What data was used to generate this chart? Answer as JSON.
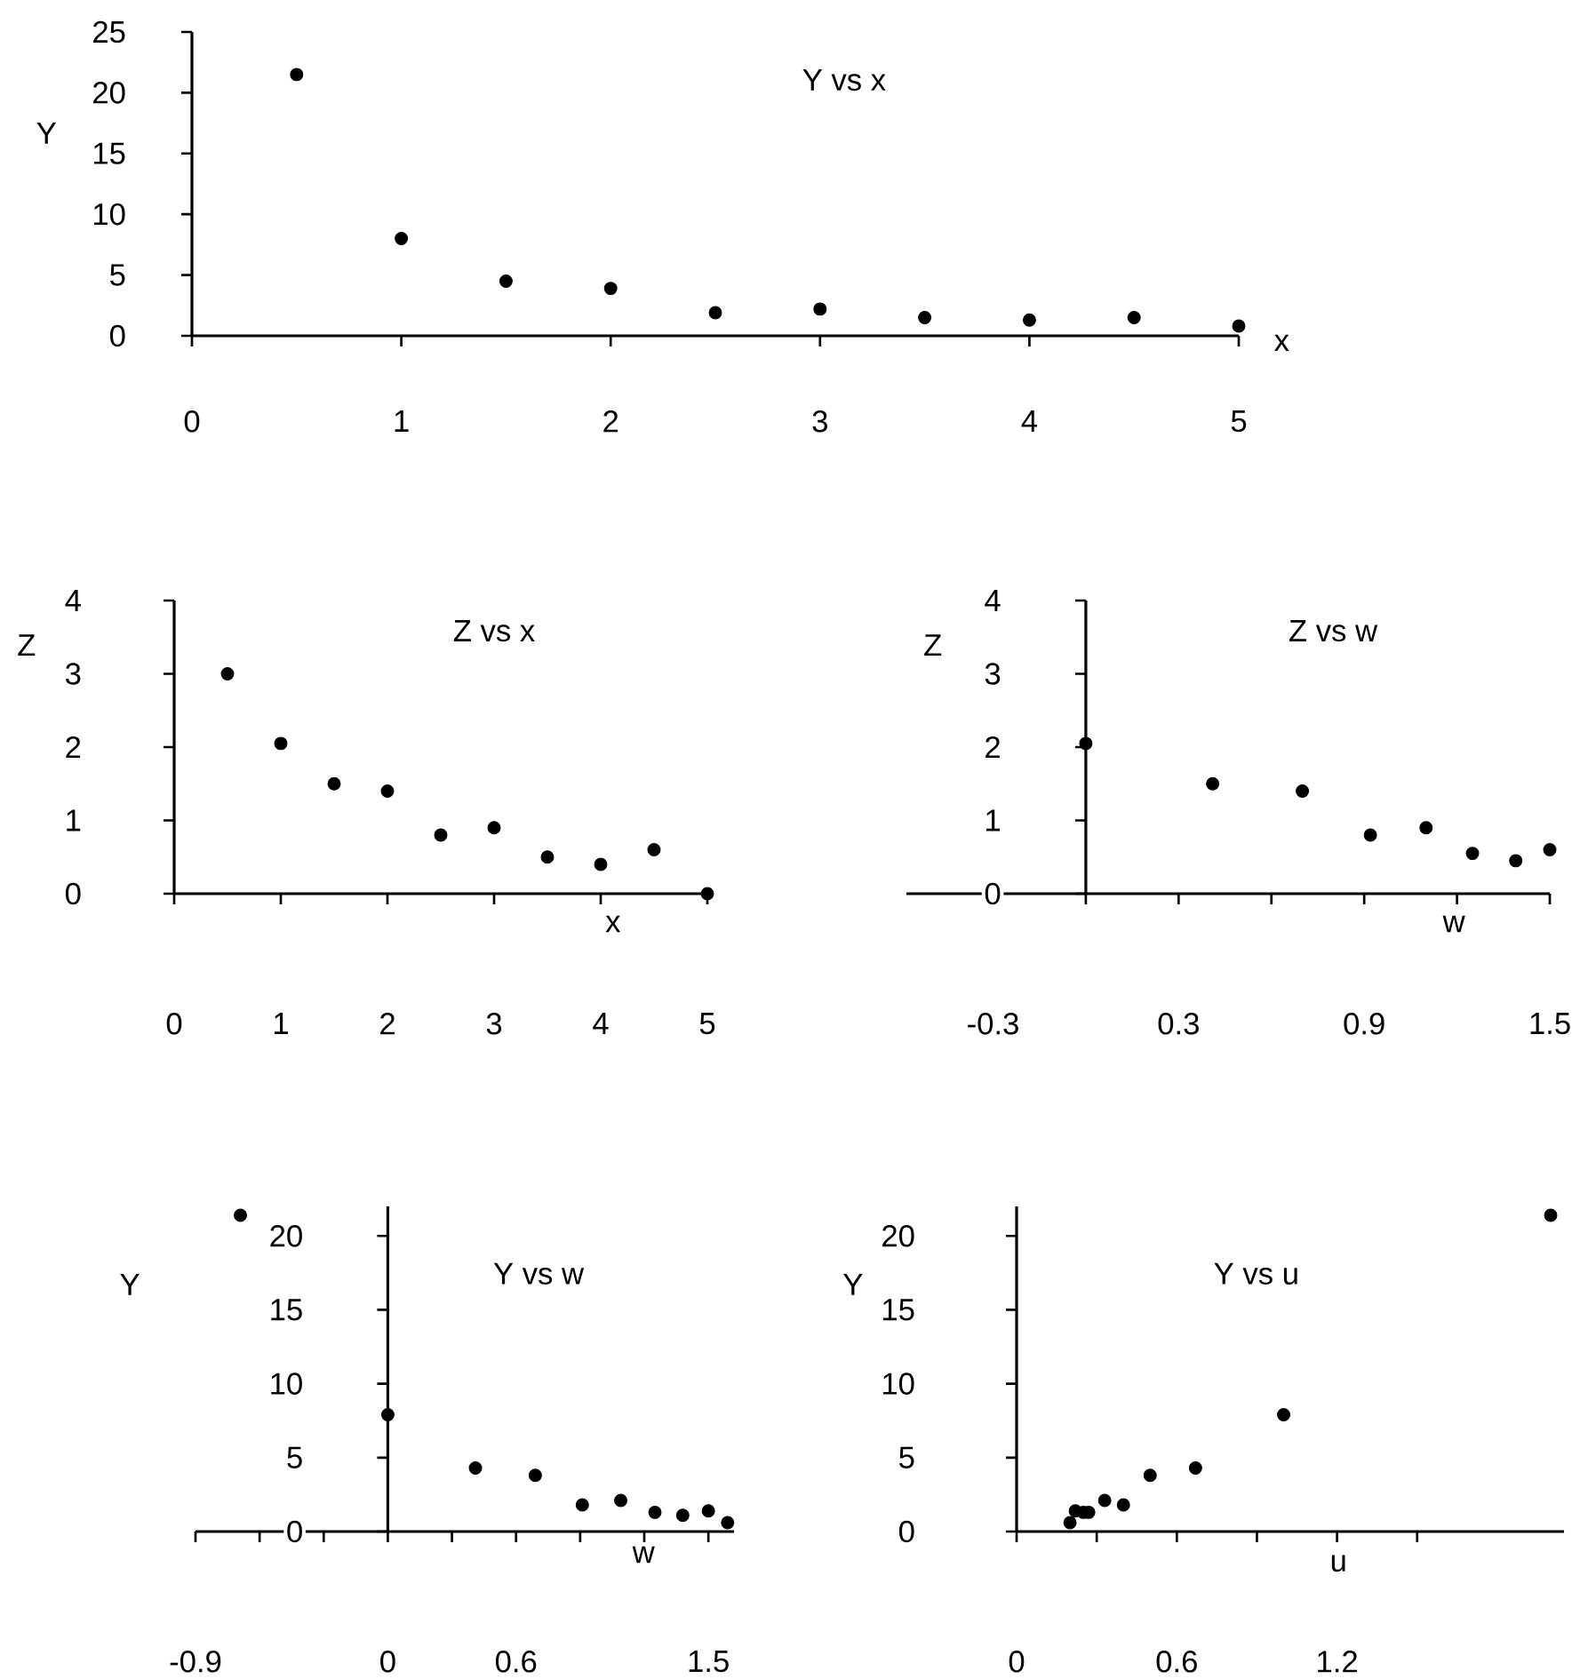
{
  "chart_data": [
    {
      "type": "scatter",
      "title": "Y vs x",
      "xlabel": "x",
      "ylabel": "Y",
      "marker": "circle",
      "color": "#000000",
      "x": [
        0.5,
        1,
        1.5,
        2,
        2.5,
        3,
        3.5,
        4,
        4.5,
        5
      ],
      "values": [
        21.5,
        8,
        4.5,
        3.9,
        1.9,
        2.2,
        1.5,
        1.3,
        1.5,
        0.8
      ],
      "xlim": [
        0,
        5
      ],
      "ylim": [
        0,
        25
      ],
      "xticks": [
        0,
        1,
        2,
        3,
        4,
        5
      ],
      "yticks": [
        0,
        5,
        10,
        15,
        20,
        25
      ]
    },
    {
      "type": "scatter",
      "title": "Z  vs  x",
      "xlabel": "x",
      "ylabel": "Z",
      "marker": "circle",
      "color": "#000000",
      "x": [
        0.5,
        1,
        1.5,
        2,
        2.5,
        3,
        3.5,
        4,
        4.5,
        5
      ],
      "values": [
        3.0,
        2.05,
        1.5,
        1.4,
        0.8,
        0.9,
        0.5,
        0.4,
        0.6,
        0
      ],
      "xlim": [
        0,
        5
      ],
      "ylim": [
        0,
        4
      ],
      "xticks": [
        0,
        1,
        2,
        3,
        4,
        5
      ],
      "yticks": [
        0,
        1,
        2,
        3,
        4
      ]
    },
    {
      "type": "scatter",
      "title": "Z  vs  w",
      "xlabel": "w",
      "ylabel": "Z",
      "marker": "circle",
      "color": "#000000",
      "x": [
        0,
        0.41,
        0.7,
        0.92,
        1.1,
        1.25,
        1.39,
        1.5
      ],
      "values": [
        2.05,
        1.5,
        1.4,
        0.8,
        0.9,
        0.55,
        0.45,
        0.6
      ],
      "xlim": [
        -0.58,
        1.5
      ],
      "ylim": [
        0,
        4
      ],
      "xticks": [
        -0.3,
        {
          "value": 0,
          "label": null
        },
        0.3,
        {
          "value": 0.6,
          "label": null
        },
        0.9,
        {
          "value": 1.2,
          "label": null
        },
        1.5
      ],
      "yticks": [
        0,
        1,
        2,
        3,
        4
      ]
    },
    {
      "type": "scatter",
      "title": "Y vs w",
      "xlabel": "w",
      "ylabel": "Y",
      "marker": "circle",
      "color": "#000000",
      "x": [
        -0.69,
        0,
        0.41,
        0.69,
        0.91,
        1.09,
        1.25,
        1.38,
        1.5,
        1.59
      ],
      "values": [
        21.4,
        7.9,
        4.3,
        3.8,
        1.8,
        2.1,
        1.3,
        1.1,
        1.4,
        0.6
      ],
      "xlim": [
        -0.9,
        1.62
      ],
      "ylim": [
        0,
        22
      ],
      "xticks": [
        -0.9,
        {
          "value": -0.6,
          "label": null
        },
        {
          "value": -0.3,
          "label": null
        },
        0,
        {
          "value": 0.3,
          "label": null
        },
        0.6,
        {
          "value": 0.9,
          "label": null
        },
        {
          "value": 1.2,
          "label": null
        },
        1.5
      ],
      "yticks": [
        0,
        5,
        10,
        15,
        20
      ]
    },
    {
      "type": "scatter",
      "title": "Y vs u",
      "xlabel": "u",
      "ylabel": "Y",
      "marker": "circle",
      "color": "#000000",
      "x": [
        2,
        1,
        0.67,
        0.5,
        0.4,
        0.33,
        0.27,
        0.25,
        0.22,
        0.2
      ],
      "values": [
        21.4,
        7.9,
        4.3,
        3.8,
        1.8,
        2.1,
        1.3,
        1.3,
        1.4,
        0.6
      ],
      "xlim": [
        0,
        2.05
      ],
      "ylim": [
        0,
        22
      ],
      "xticks": [
        0,
        {
          "value": 0.3,
          "label": null
        },
        0.6,
        {
          "value": 0.9,
          "label": null
        },
        1.2,
        {
          "value": 1.5,
          "label": null
        }
      ],
      "yticks": [
        0,
        5,
        10,
        15,
        20
      ]
    }
  ]
}
